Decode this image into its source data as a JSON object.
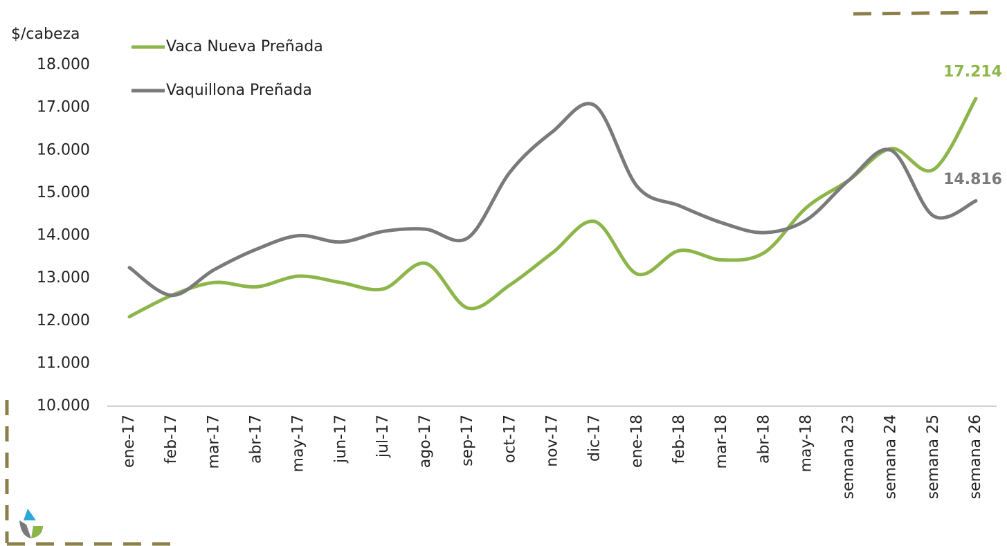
{
  "chart_data": {
    "type": "line",
    "y_axis_label": "$/cabeza",
    "categories": [
      "ene-17",
      "feb-17",
      "mar-17",
      "abr-17",
      "may-17",
      "jun-17",
      "jul-17",
      "ago-17",
      "sep-17",
      "oct-17",
      "nov-17",
      "dic-17",
      "ene-18",
      "feb-18",
      "mar-18",
      "abr-18",
      "may-18",
      "semana 23",
      "semana 24",
      "semana 25",
      "semana 26"
    ],
    "series": [
      {
        "name": "Vaca Nueva Preñada",
        "color": "#8db64a",
        "values": [
          12100,
          12600,
          12900,
          12800,
          13050,
          12900,
          12750,
          13350,
          12300,
          12850,
          13600,
          14330,
          13100,
          13650,
          13430,
          13600,
          14660,
          15300,
          16040,
          15550,
          17214
        ],
        "value_labels": [
          null,
          null,
          null,
          null,
          null,
          null,
          null,
          null,
          null,
          null,
          null,
          null,
          null,
          null,
          null,
          null,
          null,
          null,
          null,
          null,
          "17.214"
        ]
      },
      {
        "name": "Vaquillona Preñada",
        "color": "#7a7a7a",
        "values": [
          13250,
          12600,
          13200,
          13680,
          14000,
          13850,
          14100,
          14150,
          13950,
          15500,
          16440,
          17050,
          15150,
          14700,
          14300,
          14070,
          14370,
          15300,
          16000,
          14460,
          14816
        ],
        "value_labels": [
          null,
          null,
          null,
          null,
          null,
          null,
          null,
          null,
          null,
          null,
          null,
          null,
          null,
          null,
          null,
          null,
          null,
          null,
          null,
          null,
          "14.816"
        ]
      }
    ],
    "ylim": [
      10000,
      18000
    ],
    "yticks": [
      {
        "value": 10000,
        "label": "10.000"
      },
      {
        "value": 11000,
        "label": "11.000"
      },
      {
        "value": 12000,
        "label": "12.000"
      },
      {
        "value": 13000,
        "label": "13.000"
      },
      {
        "value": 14000,
        "label": "14.000"
      },
      {
        "value": 15000,
        "label": "15.000"
      },
      {
        "value": 16000,
        "label": "16.000"
      },
      {
        "value": 17000,
        "label": "17.000"
      },
      {
        "value": 18000,
        "label": "18.000"
      }
    ],
    "grid": false,
    "legend": "top-left"
  }
}
